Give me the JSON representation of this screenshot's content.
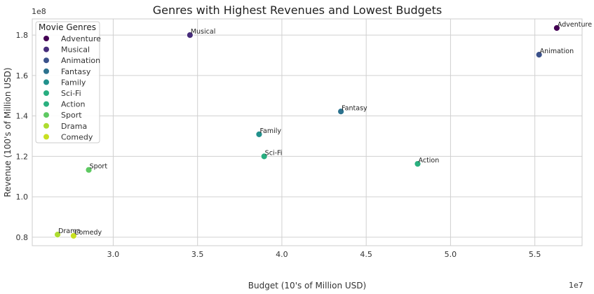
{
  "chart_data": {
    "type": "scatter",
    "title": "Genres with Highest Revenues and Lowest Budgets",
    "xlabel": "Budget (10's of Million USD)",
    "ylabel": "Revenue (100's of Million USD)",
    "x_offset_label": "1e7",
    "y_offset_label": "1e8",
    "xlim": [
      25200000,
      57800000
    ],
    "ylim": [
      75800000,
      188000000
    ],
    "x_ticks": [
      30000000,
      35000000,
      40000000,
      45000000,
      50000000,
      55000000
    ],
    "x_tick_labels": [
      "3.0",
      "3.5",
      "4.0",
      "4.5",
      "5.0",
      "5.5"
    ],
    "y_ticks": [
      80000000,
      100000000,
      120000000,
      140000000,
      160000000,
      180000000
    ],
    "y_tick_labels": [
      "0.8",
      "1.0",
      "1.2",
      "1.4",
      "1.6",
      "1.8"
    ],
    "grid": true,
    "legend": {
      "title": "Movie Genres",
      "placement": "top-left"
    },
    "points": [
      {
        "label": "Adventure",
        "x": 56300000,
        "y": 183500000,
        "color": "#440154"
      },
      {
        "label": "Musical",
        "x": 34550000,
        "y": 180000000,
        "color": "#472d7b"
      },
      {
        "label": "Animation",
        "x": 55250000,
        "y": 170300000,
        "color": "#3b528b"
      },
      {
        "label": "Fantasy",
        "x": 43500000,
        "y": 142200000,
        "color": "#2c728e"
      },
      {
        "label": "Family",
        "x": 38650000,
        "y": 130900000,
        "color": "#21918c"
      },
      {
        "label": "Sci-Fi",
        "x": 38950000,
        "y": 120000000,
        "color": "#28ae80"
      },
      {
        "label": "Action",
        "x": 48050000,
        "y": 116300000,
        "color": "#2ab07f"
      },
      {
        "label": "Sport",
        "x": 28550000,
        "y": 113300000,
        "color": "#5ec962"
      },
      {
        "label": "Drama",
        "x": 26700000,
        "y": 81300000,
        "color": "#addc30"
      },
      {
        "label": "Comedy",
        "x": 27650000,
        "y": 80700000,
        "color": "#c8e020"
      }
    ]
  }
}
